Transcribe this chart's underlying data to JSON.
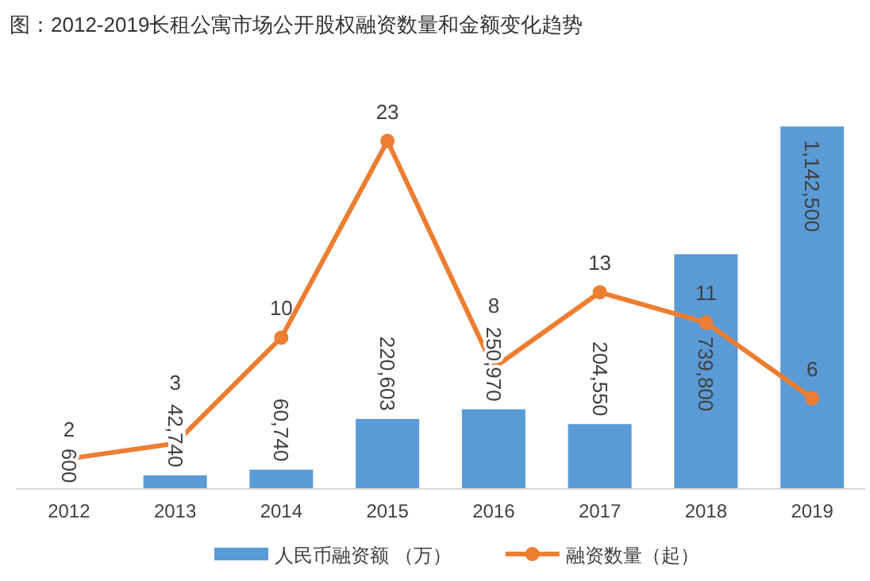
{
  "chart_data": {
    "type": "bar",
    "title": "图：2012-2019长租公寓市场公开股权融资数量和金额变化趋势",
    "categories": [
      "2012",
      "2013",
      "2014",
      "2015",
      "2016",
      "2017",
      "2018",
      "2019"
    ],
    "series": [
      {
        "name": "人民币融资额 （万）",
        "color": "#5b9bd5",
        "values": [
          600,
          42740,
          60740,
          220603,
          250970,
          204550,
          739800,
          1142500
        ],
        "value_labels": [
          "600",
          "42,740",
          "60,740",
          "220,603",
          "250,970",
          "204,550",
          "739,800",
          "1,142,500"
        ]
      },
      {
        "name": "融资数量（起）",
        "type": "line",
        "axis": "y2",
        "color": "#ed7d31",
        "marker": "circle",
        "values": [
          2,
          3,
          10,
          23,
          8,
          13,
          11,
          6
        ]
      }
    ],
    "data_labels": true,
    "legend": "bottom",
    "grid": false
  }
}
